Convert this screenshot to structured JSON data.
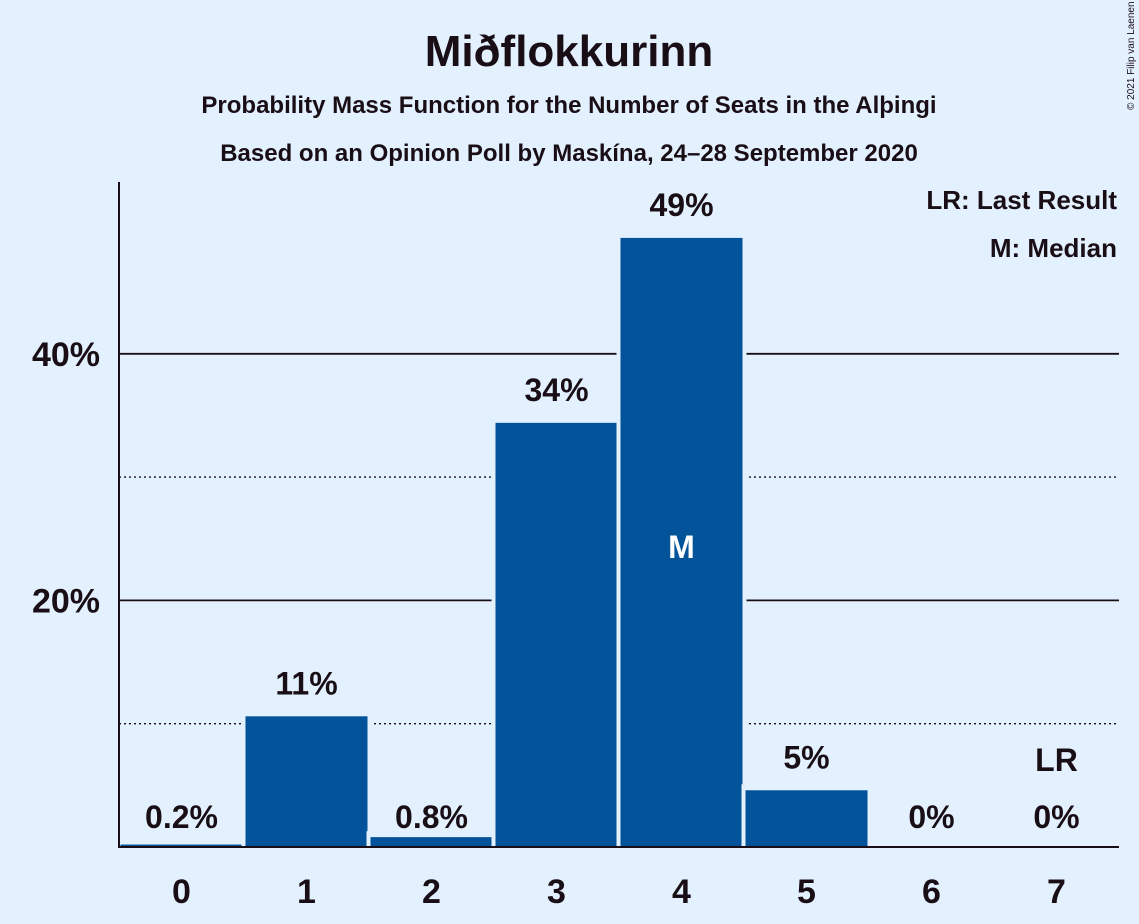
{
  "title": "Miðflokkurinn",
  "subtitle1": "Probability Mass Function for the Number of Seats in the Alþingi",
  "subtitle2": "Based on an Opinion Poll by Maskína, 24–28 September 2020",
  "copyright": "© 2021 Filip van Laenen",
  "legend": {
    "last_result": "LR: Last Result",
    "median": "M: Median"
  },
  "colors": {
    "bar": "#02539a",
    "background": "#e3f1fe",
    "text": "#1a0e16"
  },
  "chart_data": {
    "type": "bar",
    "categories": [
      "0",
      "1",
      "2",
      "3",
      "4",
      "5",
      "6",
      "7"
    ],
    "values": [
      0.2,
      10.6,
      0.8,
      34.4,
      49.4,
      4.6,
      0,
      0
    ],
    "value_labels": [
      "0.2%",
      "11%",
      "0.8%",
      "34%",
      "49%",
      "5%",
      "0%",
      "0%"
    ],
    "ylim": [
      0,
      54
    ],
    "yticks_major": [
      20,
      40
    ],
    "ytick_labels": [
      "20%",
      "40%"
    ],
    "yticks_minor": [
      10,
      30
    ],
    "median_marker": {
      "category": "4",
      "label": "M"
    },
    "last_result_marker": {
      "category": "7",
      "label": "LR"
    },
    "grid": true,
    "legend_position": "top-right"
  }
}
